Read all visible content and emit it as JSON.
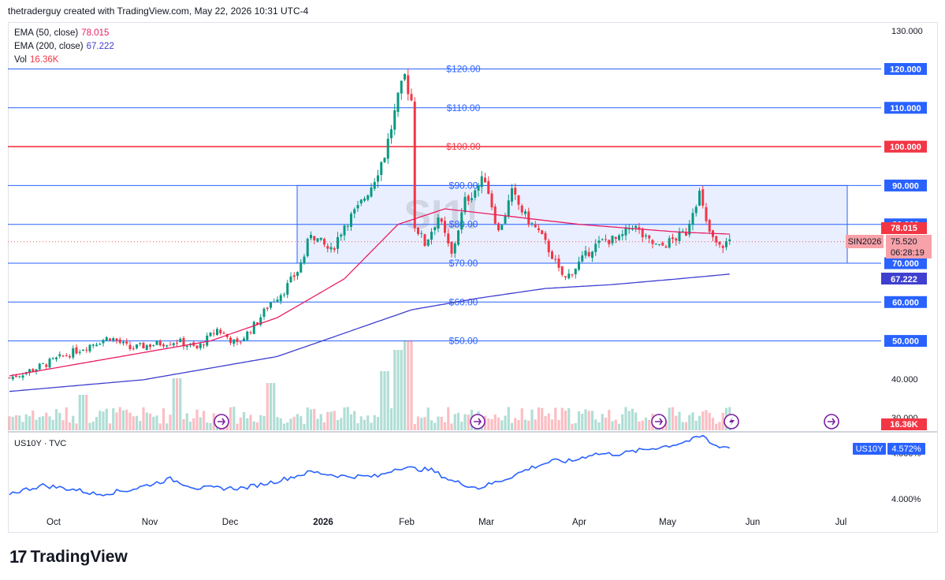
{
  "header": {
    "text": "thetraderguy created with TradingView.com, May 22, 2026 10:31 UTC-4"
  },
  "legend": {
    "ema50": {
      "label": "EMA (50, close)",
      "value": "78.015",
      "color": "#e91e63"
    },
    "ema200": {
      "label": "EMA (200, close)",
      "value": "67.222",
      "color": "#3f3fd0"
    },
    "vol": {
      "label": "Vol",
      "value": "16.36K",
      "color": "#f23645"
    }
  },
  "symbol_watermark": "SI1!",
  "sub_pane": {
    "title": "US10Y · TVC",
    "badge": "US10Y",
    "value": "4.572%",
    "ticks": [
      "4.500%",
      "4.000%"
    ],
    "color": "#2962ff"
  },
  "price_axis": {
    "ticks": [
      "130.000",
      "40.000",
      "30.000"
    ],
    "last": {
      "label": "SIN2026",
      "price": "75.520",
      "countdown": "06:28:19"
    },
    "ema50_tag": "78.015",
    "ema200_tag": "67.222",
    "vol_tag": "16.36K"
  },
  "horizontal_lines": [
    {
      "left_label": "$120.00",
      "right_label": "120.000",
      "color": "#2962ff"
    },
    {
      "left_label": "$110.00",
      "right_label": "110.000",
      "color": "#2962ff"
    },
    {
      "left_label": "$100.00",
      "right_label": "100.000",
      "color": "#f23645"
    },
    {
      "left_label": "$90.00",
      "right_label": "90.000",
      "color": "#2962ff"
    },
    {
      "left_label": "$80.00",
      "right_label": "80.000",
      "color": "#2962ff"
    },
    {
      "left_label": "$70.00",
      "right_label": "70.000",
      "color": "#2962ff"
    },
    {
      "left_label": "$60.00",
      "right_label": "60.000",
      "color": "#2962ff"
    },
    {
      "left_label": "$50.00",
      "right_label": "50.000",
      "color": "#2962ff"
    }
  ],
  "time_axis": [
    "Oct",
    "Nov",
    "Dec",
    "2026",
    "Feb",
    "Mar",
    "Apr",
    "May",
    "Jun",
    "Jul"
  ],
  "footer": {
    "brand": "TradingView"
  },
  "chart_data": {
    "type": "candlestick",
    "ylim": [
      28,
      132
    ],
    "range_box": {
      "low": 70,
      "high": 90
    },
    "anchors": [
      [
        0,
        40.5
      ],
      [
        8,
        43
      ],
      [
        16,
        46
      ],
      [
        24,
        49
      ],
      [
        30,
        51
      ],
      [
        36,
        48
      ],
      [
        42,
        49
      ],
      [
        50,
        50
      ],
      [
        56,
        48
      ],
      [
        62,
        53
      ],
      [
        68,
        49
      ],
      [
        74,
        55
      ],
      [
        78,
        60
      ],
      [
        82,
        63
      ],
      [
        86,
        68
      ],
      [
        88,
        72
      ],
      [
        90,
        78
      ],
      [
        92,
        76
      ],
      [
        96,
        73
      ],
      [
        100,
        80
      ],
      [
        104,
        84
      ],
      [
        108,
        90
      ],
      [
        112,
        98
      ],
      [
        116,
        112
      ],
      [
        118,
        118
      ],
      [
        120,
        112
      ],
      [
        121,
        80
      ],
      [
        124,
        75
      ],
      [
        128,
        82
      ],
      [
        132,
        72
      ],
      [
        136,
        86
      ],
      [
        140,
        90
      ],
      [
        142,
        92
      ],
      [
        146,
        78
      ],
      [
        150,
        88
      ],
      [
        154,
        82
      ],
      [
        158,
        78
      ],
      [
        162,
        72
      ],
      [
        164,
        68
      ],
      [
        166,
        66
      ],
      [
        170,
        70
      ],
      [
        174,
        74
      ],
      [
        178,
        76
      ],
      [
        182,
        76
      ],
      [
        186,
        80
      ],
      [
        190,
        76
      ],
      [
        194,
        74
      ],
      [
        198,
        76
      ],
      [
        202,
        78
      ],
      [
        204,
        84
      ],
      [
        206,
        88
      ],
      [
        208,
        80
      ],
      [
        210,
        76
      ],
      [
        212,
        74
      ],
      [
        215,
        76
      ]
    ],
    "ema50": [
      [
        0,
        41
      ],
      [
        20,
        44
      ],
      [
        40,
        47
      ],
      [
        60,
        50
      ],
      [
        80,
        56
      ],
      [
        100,
        66
      ],
      [
        116,
        80
      ],
      [
        130,
        84
      ],
      [
        150,
        82
      ],
      [
        170,
        80
      ],
      [
        185,
        79
      ],
      [
        200,
        78
      ],
      [
        215,
        77.5
      ]
    ],
    "ema200": [
      [
        0,
        37
      ],
      [
        40,
        40
      ],
      [
        80,
        46
      ],
      [
        100,
        52
      ],
      [
        120,
        58
      ],
      [
        140,
        61
      ],
      [
        160,
        63.5
      ],
      [
        180,
        64.5
      ],
      [
        200,
        66
      ],
      [
        215,
        67.2
      ]
    ],
    "volume_spikes": [
      [
        22,
        15
      ],
      [
        50,
        22
      ],
      [
        78,
        20
      ],
      [
        112,
        25
      ],
      [
        116,
        34
      ],
      [
        119,
        38
      ]
    ],
    "us10y": [
      [
        0,
        4.06
      ],
      [
        10,
        4.15
      ],
      [
        20,
        4.1
      ],
      [
        26,
        4.05
      ],
      [
        36,
        4.1
      ],
      [
        48,
        4.22
      ],
      [
        56,
        4.12
      ],
      [
        70,
        4.12
      ],
      [
        80,
        4.2
      ],
      [
        90,
        4.3
      ],
      [
        100,
        4.25
      ],
      [
        110,
        4.25
      ],
      [
        116,
        4.35
      ],
      [
        126,
        4.32
      ],
      [
        132,
        4.2
      ],
      [
        140,
        4.12
      ],
      [
        148,
        4.22
      ],
      [
        156,
        4.35
      ],
      [
        162,
        4.42
      ],
      [
        168,
        4.42
      ],
      [
        174,
        4.5
      ],
      [
        182,
        4.5
      ],
      [
        190,
        4.55
      ],
      [
        198,
        4.6
      ],
      [
        204,
        4.66
      ],
      [
        207,
        4.7
      ],
      [
        210,
        4.6
      ],
      [
        215,
        4.572
      ]
    ],
    "us10y_ylim": [
      3.9,
      4.72
    ]
  }
}
